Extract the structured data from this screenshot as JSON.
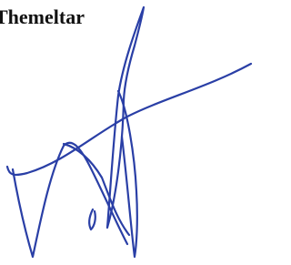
{
  "header": {
    "name": "Themeltar"
  }
}
